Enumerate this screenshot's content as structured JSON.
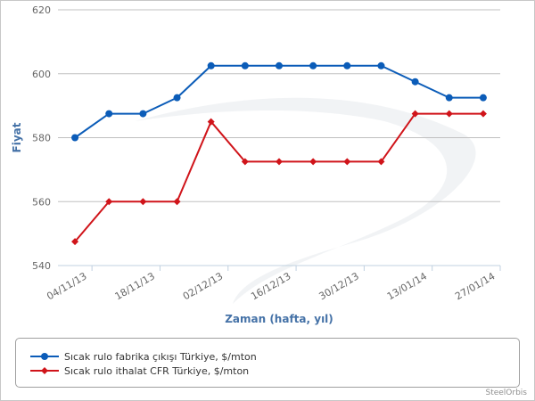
{
  "chart_data": {
    "type": "line",
    "xlabel": "Zaman (hafta, yıl)",
    "ylabel": "Fiyat",
    "ylim": [
      540,
      620
    ],
    "yticks": [
      540,
      560,
      580,
      600,
      620
    ],
    "categories": [
      "04/11/13",
      "11/11/13",
      "18/11/13",
      "25/11/13",
      "02/12/13",
      "09/12/13",
      "16/12/13",
      "23/12/13",
      "30/12/13",
      "06/01/14",
      "13/01/14",
      "20/01/14",
      "27/01/14"
    ],
    "xtick_labels": [
      "04/11/13",
      "18/11/13",
      "02/12/13",
      "16/12/13",
      "30/12/13",
      "13/01/14",
      "27/01/14"
    ],
    "grid": "horizontal",
    "legend_position": "bottom",
    "series": [
      {
        "name": "Sıcak rulo fabrika çıkışı Türkiye, $/mton",
        "color": "#0b5cb8",
        "marker": "circle",
        "values": [
          580,
          587.5,
          587.5,
          592.5,
          602.5,
          602.5,
          602.5,
          602.5,
          602.5,
          602.5,
          597.5,
          592.5,
          592.5
        ]
      },
      {
        "name": "Sıcak rulo ithalat CFR Türkiye, $/mton",
        "color": "#d0141a",
        "marker": "diamond",
        "values": [
          547.5,
          560,
          560,
          560,
          585,
          572.5,
          572.5,
          572.5,
          572.5,
          572.5,
          587.5,
          587.5,
          587.5
        ]
      }
    ]
  },
  "credit": "SteelOrbis"
}
